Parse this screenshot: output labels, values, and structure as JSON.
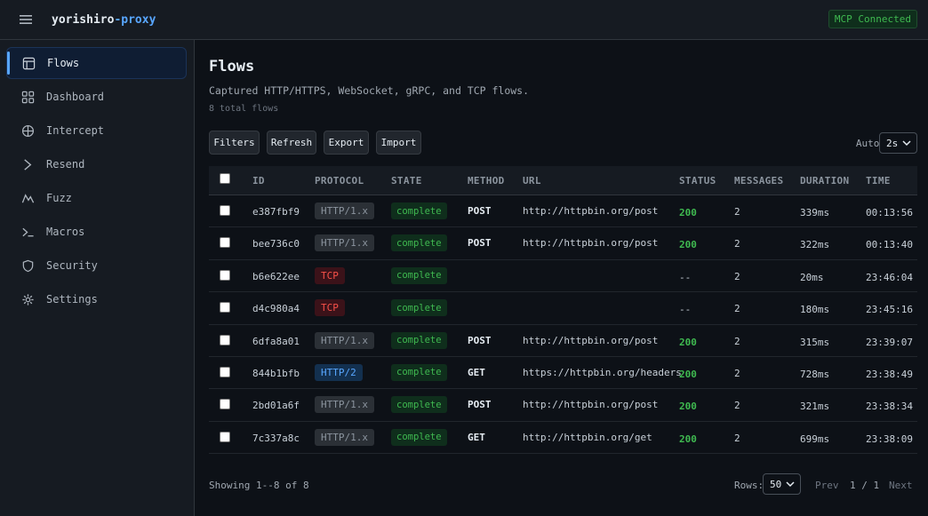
{
  "app": {
    "name_main": "yorishiro",
    "name_accent": "-proxy",
    "mcp_status": "MCP Connected",
    "accent_color": "#58a6ff",
    "success_color": "#3fb950",
    "danger_color": "#f85149"
  },
  "sidebar": {
    "items": [
      {
        "label": "Flows",
        "icon": "table-icon",
        "active": true
      },
      {
        "label": "Dashboard",
        "icon": "grid-icon",
        "active": false
      },
      {
        "label": "Intercept",
        "icon": "crosshair-icon",
        "active": false
      },
      {
        "label": "Resend",
        "icon": "chevron-right-icon",
        "active": false
      },
      {
        "label": "Fuzz",
        "icon": "fuzz-icon",
        "active": false
      },
      {
        "label": "Macros",
        "icon": "terminal-icon",
        "active": false
      },
      {
        "label": "Security",
        "icon": "shield-icon",
        "active": false
      },
      {
        "label": "Settings",
        "icon": "gear-icon",
        "active": false
      }
    ]
  },
  "page": {
    "title": "Flows",
    "subtitle": "Captured HTTP/HTTPS, WebSocket, gRPC, and TCP flows.",
    "total": "8 total flows"
  },
  "toolbar": {
    "filters": "Filters",
    "refresh": "Refresh",
    "export": "Export",
    "import": "Import",
    "auto_label": "Auto:",
    "auto_value": "2s"
  },
  "table": {
    "headers": {
      "id": "ID",
      "protocol": "PROTOCOL",
      "state": "STATE",
      "method": "METHOD",
      "url": "URL",
      "status": "STATUS",
      "messages": "MESSAGES",
      "duration": "DURATION",
      "time": "TIME"
    },
    "rows": [
      {
        "id": "e387fbf9",
        "protocol": "HTTP/1.x",
        "proto_kind": "http1",
        "state": "complete",
        "method": "POST",
        "url": "http://httpbin.org/post",
        "status": "200",
        "messages": "2",
        "duration": "339ms",
        "time": "00:13:56"
      },
      {
        "id": "bee736c0",
        "protocol": "HTTP/1.x",
        "proto_kind": "http1",
        "state": "complete",
        "method": "POST",
        "url": "http://httpbin.org/post",
        "status": "200",
        "messages": "2",
        "duration": "322ms",
        "time": "00:13:40"
      },
      {
        "id": "b6e622ee",
        "protocol": "TCP",
        "proto_kind": "tcp",
        "state": "complete",
        "method": "",
        "url": "",
        "status": "--",
        "messages": "2",
        "duration": "20ms",
        "time": "23:46:04"
      },
      {
        "id": "d4c980a4",
        "protocol": "TCP",
        "proto_kind": "tcp",
        "state": "complete",
        "method": "",
        "url": "",
        "status": "--",
        "messages": "2",
        "duration": "180ms",
        "time": "23:45:16"
      },
      {
        "id": "6dfa8a01",
        "protocol": "HTTP/1.x",
        "proto_kind": "http1",
        "state": "complete",
        "method": "POST",
        "url": "http://httpbin.org/post",
        "status": "200",
        "messages": "2",
        "duration": "315ms",
        "time": "23:39:07"
      },
      {
        "id": "844b1bfb",
        "protocol": "HTTP/2",
        "proto_kind": "http2",
        "state": "complete",
        "method": "GET",
        "url": "https://httpbin.org/headers",
        "status": "200",
        "messages": "2",
        "duration": "728ms",
        "time": "23:38:49"
      },
      {
        "id": "2bd01a6f",
        "protocol": "HTTP/1.x",
        "proto_kind": "http1",
        "state": "complete",
        "method": "POST",
        "url": "http://httpbin.org/post",
        "status": "200",
        "messages": "2",
        "duration": "321ms",
        "time": "23:38:34"
      },
      {
        "id": "7c337a8c",
        "protocol": "HTTP/1.x",
        "proto_kind": "http1",
        "state": "complete",
        "method": "GET",
        "url": "http://httpbin.org/get",
        "status": "200",
        "messages": "2",
        "duration": "699ms",
        "time": "23:38:09"
      }
    ]
  },
  "footer": {
    "showing": "Showing 1--8 of 8",
    "rows_label": "Rows:",
    "rows_value": "50",
    "prev": "Prev",
    "page": "1 / 1",
    "next": "Next"
  }
}
